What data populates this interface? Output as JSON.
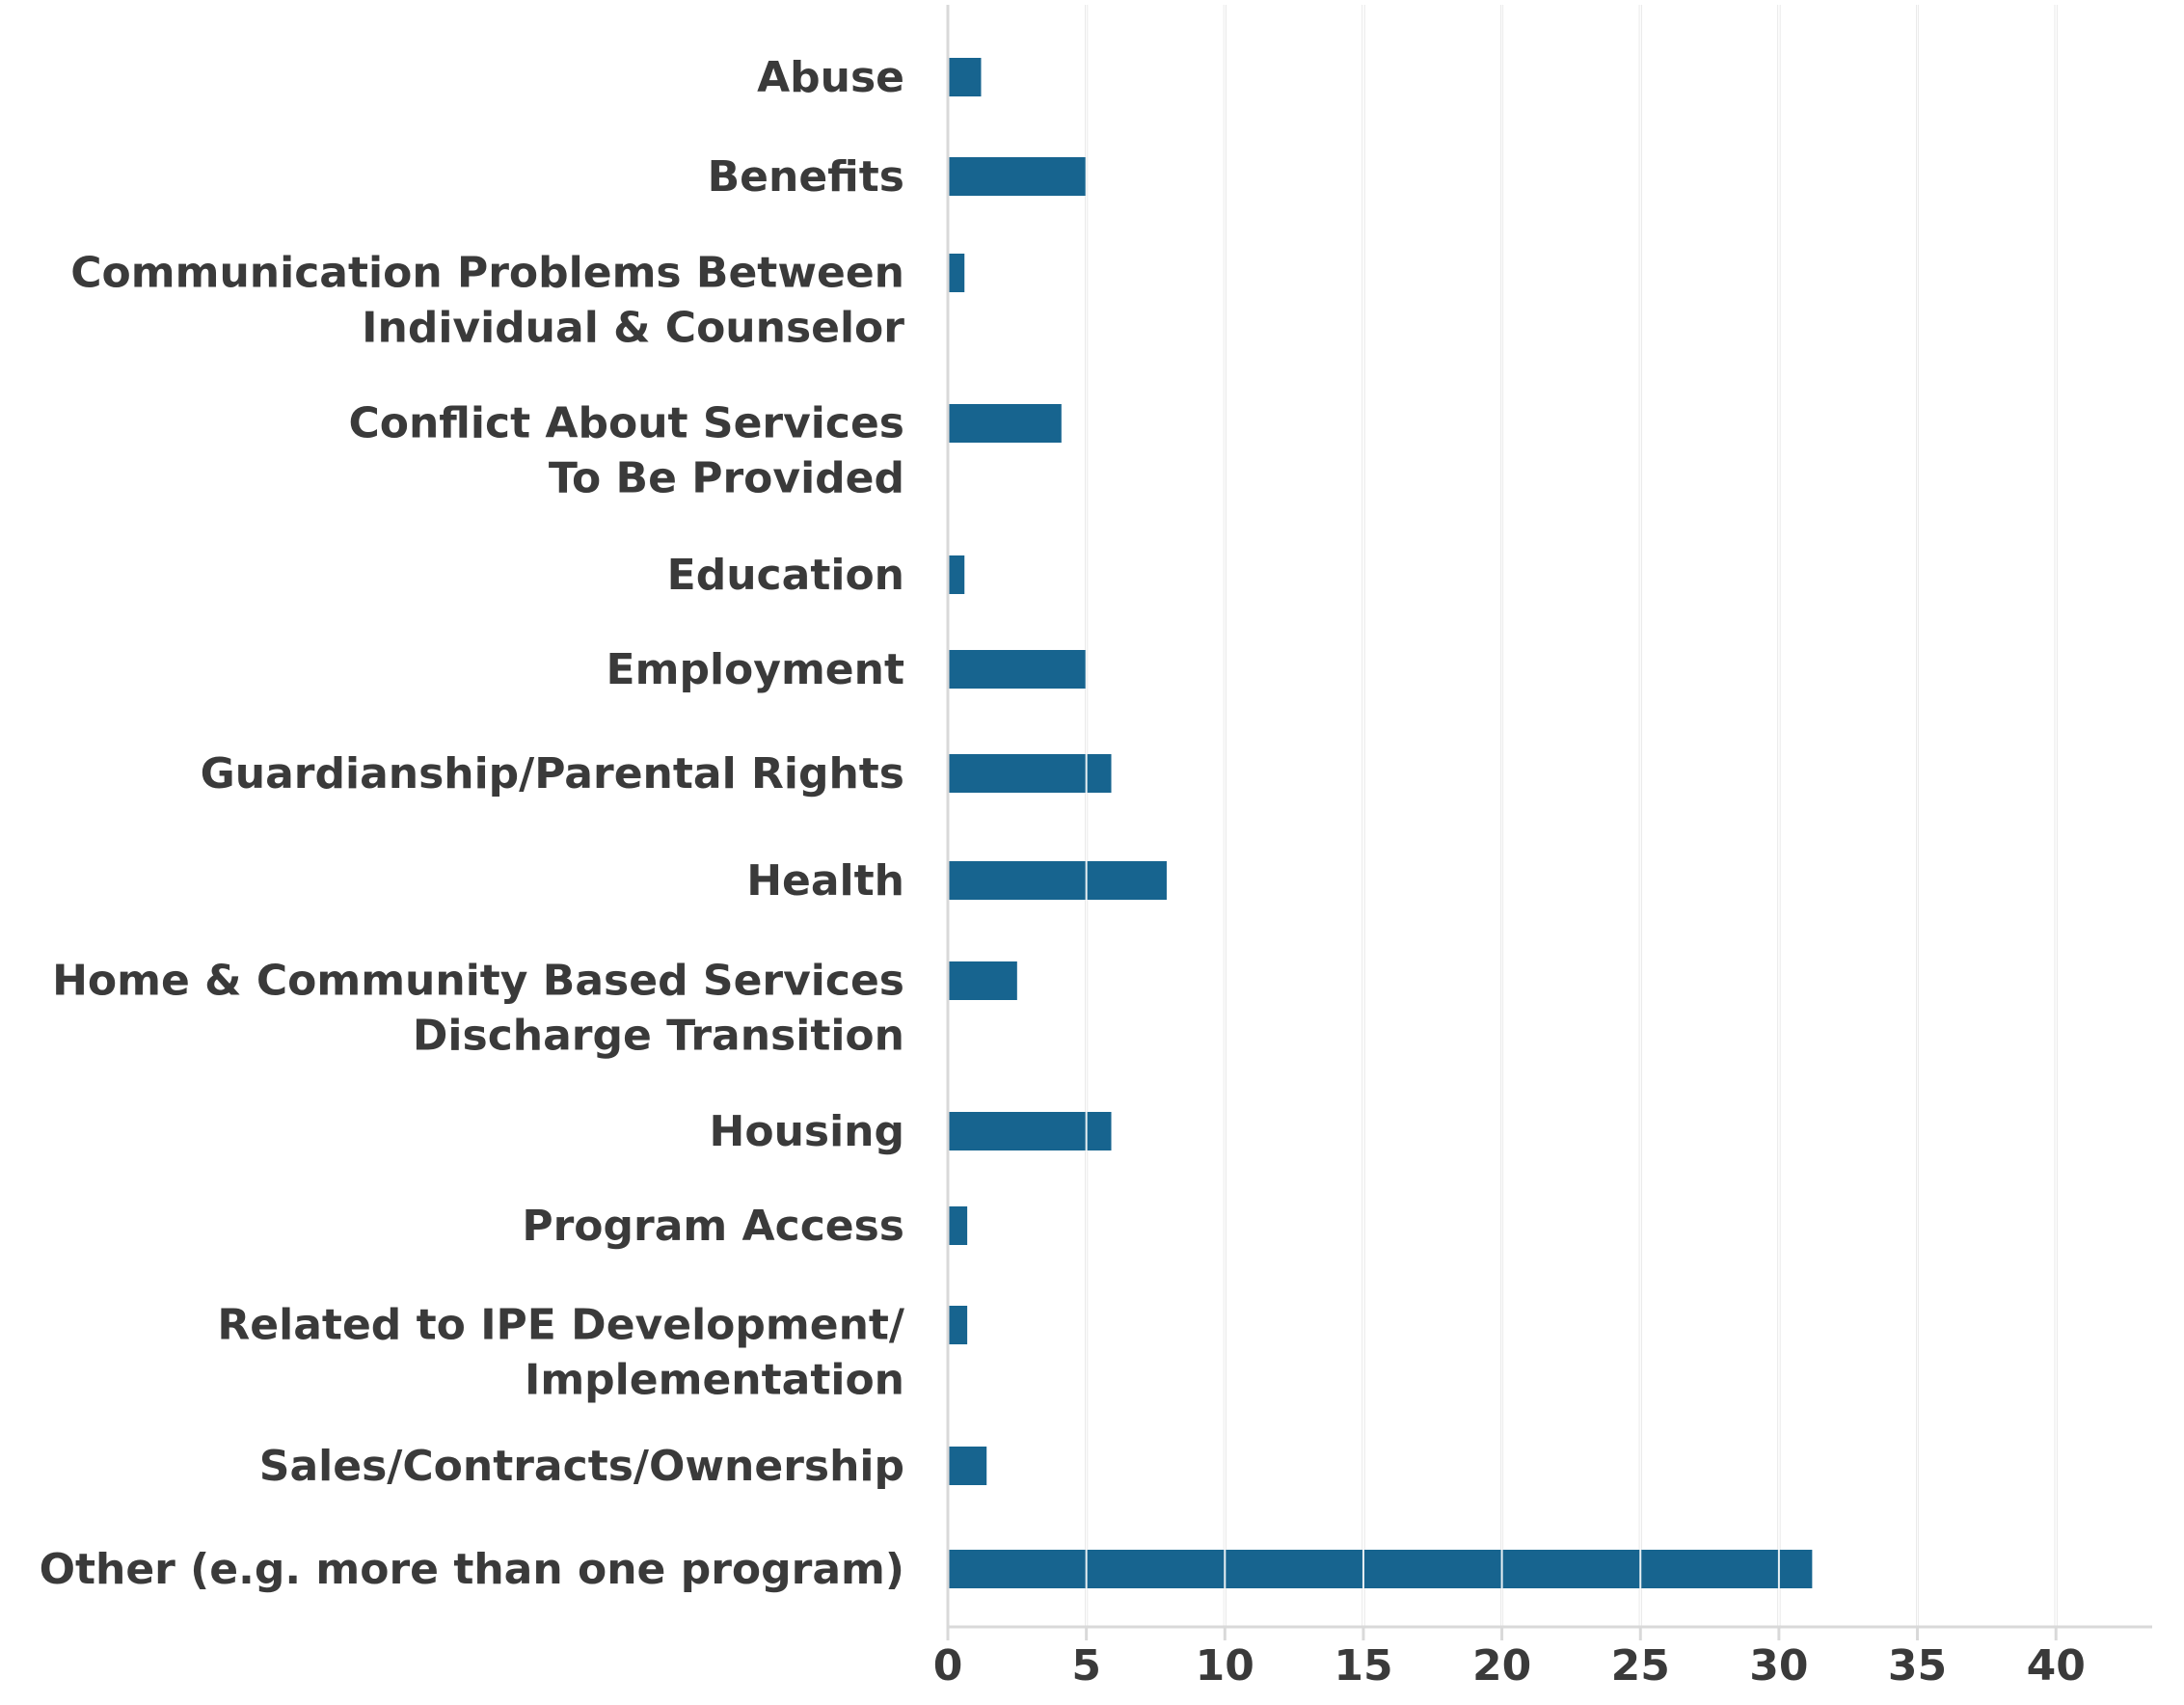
{
  "chart_data": {
    "type": "bar",
    "orientation": "horizontal",
    "categories": [
      [
        "Abuse"
      ],
      [
        "Benefits"
      ],
      [
        "Communication Problems Between",
        "Individual & Counselor"
      ],
      [
        "Conflict About Services",
        "To Be Provided"
      ],
      [
        "Education"
      ],
      [
        "Employment"
      ],
      [
        "Guardianship/Parental Rights"
      ],
      [
        "Health"
      ],
      [
        "Home & Community Based Services",
        "Discharge Transition"
      ],
      [
        "Housing"
      ],
      [
        "Program Access"
      ],
      [
        "Related to IPE Development/",
        "Implementation"
      ],
      [
        "Sales/Contracts/Ownership"
      ],
      [
        "Other (e.g. more than one program)"
      ]
    ],
    "values": [
      1.2,
      5,
      0.6,
      4.1,
      0.6,
      5,
      5.9,
      7.9,
      2.5,
      5.9,
      0.7,
      0.7,
      1.4,
      31.2
    ],
    "xlim": [
      0,
      43
    ],
    "xticks": [
      "0",
      "5",
      "10",
      "15",
      "20",
      "25",
      "30",
      "35",
      "40"
    ],
    "xtick_values": [
      0,
      5,
      10,
      15,
      20,
      25,
      30,
      35,
      40
    ],
    "grid": true,
    "title": "",
    "xlabel": "",
    "ylabel": "",
    "colors": {
      "bar": "#17648f",
      "grid": "#d9d9d9",
      "axis": "#d9d9d9",
      "text": "#3a3a3a"
    }
  }
}
